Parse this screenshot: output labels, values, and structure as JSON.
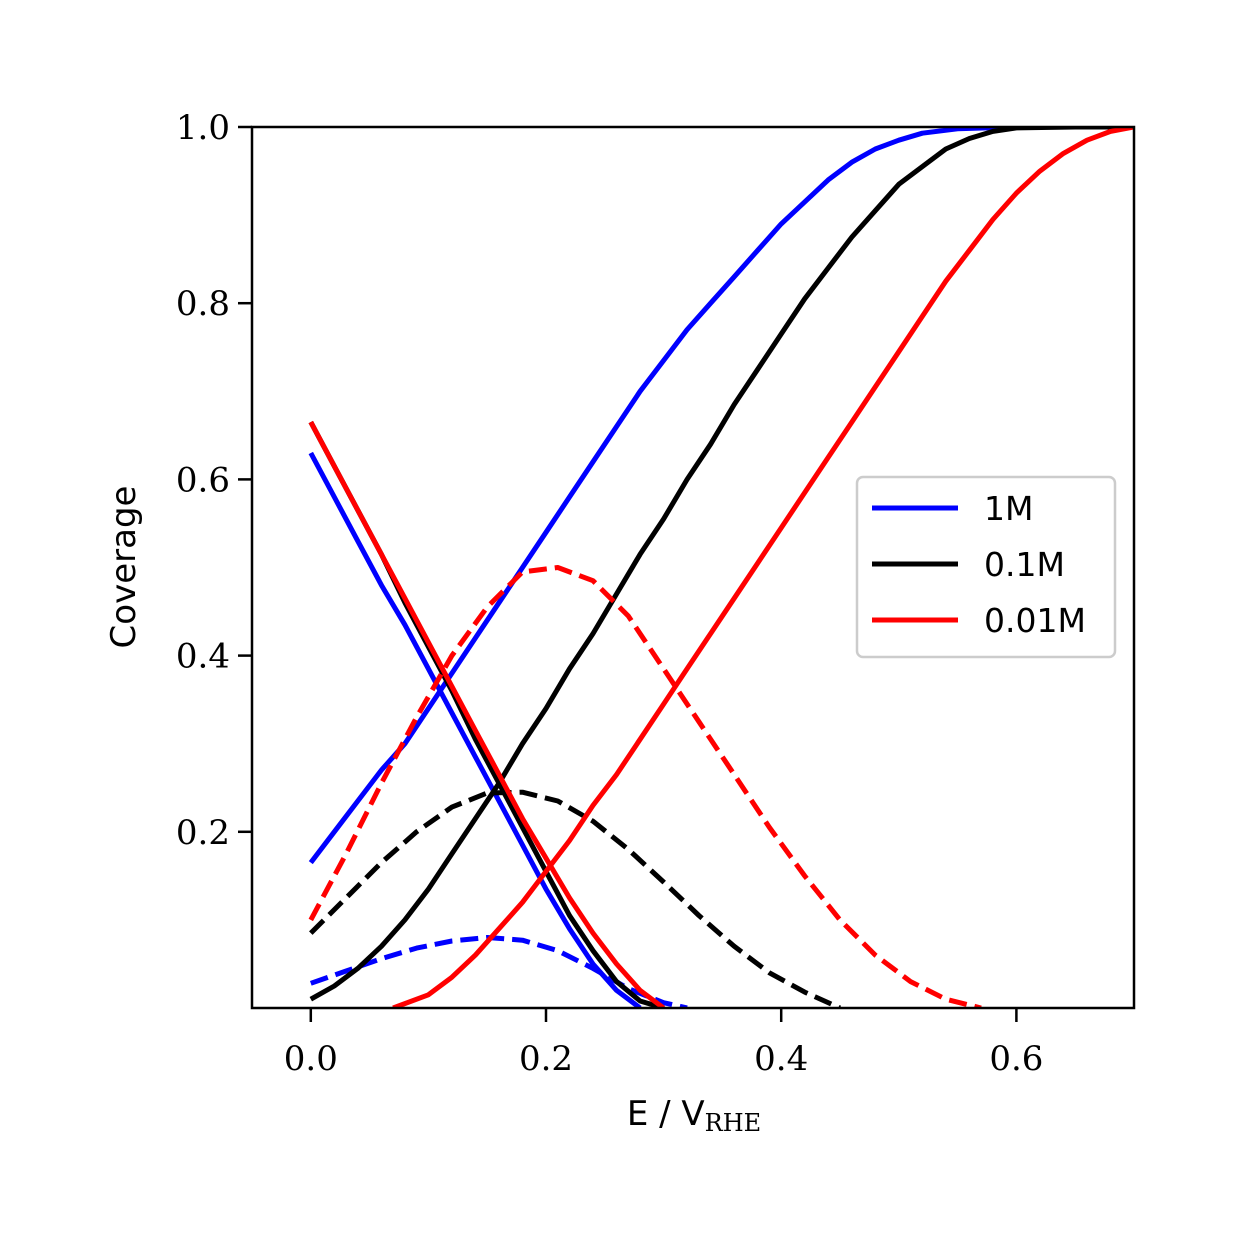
{
  "chart_data": {
    "type": "line",
    "xlabel": "E / V",
    "xlabel_subscript": "RHE",
    "ylabel": "Coverage",
    "xlim": [
      -0.05,
      0.7
    ],
    "ylim": [
      0.0,
      1.0
    ],
    "xticks": [
      0.0,
      0.2,
      0.4,
      0.6
    ],
    "xtick_labels": [
      "0.0",
      "0.2",
      "0.4",
      "0.6"
    ],
    "yticks": [
      0.2,
      0.4,
      0.6,
      0.8,
      1.0
    ],
    "ytick_labels": [
      "0.2",
      "0.4",
      "0.6",
      "0.8",
      "1.0"
    ],
    "legend": {
      "position": "center-right",
      "entries": [
        {
          "label": "1M",
          "color": "#0000ff"
        },
        {
          "label": "0.1M",
          "color": "#000000"
        },
        {
          "label": "0.01M",
          "color": "#ff0000"
        }
      ]
    },
    "series": [
      {
        "group": "1M",
        "color": "#0000ff",
        "style": "solid",
        "x": [
          0.0,
          0.02,
          0.04,
          0.06,
          0.08,
          0.1,
          0.12,
          0.14,
          0.16,
          0.18,
          0.2,
          0.22,
          0.24,
          0.26,
          0.28,
          0.3,
          0.32,
          0.34,
          0.36,
          0.38,
          0.4,
          0.42,
          0.44,
          0.46,
          0.48,
          0.5,
          0.52,
          0.55,
          0.6,
          0.65,
          0.7
        ],
        "y": [
          0.165,
          0.2,
          0.235,
          0.27,
          0.3,
          0.34,
          0.38,
          0.42,
          0.46,
          0.5,
          0.54,
          0.58,
          0.62,
          0.66,
          0.7,
          0.735,
          0.77,
          0.8,
          0.83,
          0.86,
          0.89,
          0.915,
          0.94,
          0.96,
          0.975,
          0.985,
          0.993,
          0.998,
          1.0,
          1.0,
          1.0
        ]
      },
      {
        "group": "1M",
        "color": "#0000ff",
        "style": "solid",
        "x": [
          0.0,
          0.02,
          0.04,
          0.06,
          0.08,
          0.1,
          0.12,
          0.14,
          0.16,
          0.18,
          0.2,
          0.22,
          0.24,
          0.26,
          0.28
        ],
        "y": [
          0.63,
          0.58,
          0.53,
          0.48,
          0.435,
          0.385,
          0.335,
          0.285,
          0.235,
          0.185,
          0.135,
          0.09,
          0.05,
          0.02,
          0.0
        ]
      },
      {
        "group": "1M",
        "color": "#0000ff",
        "style": "dashed",
        "x": [
          0.0,
          0.03,
          0.06,
          0.09,
          0.12,
          0.15,
          0.18,
          0.21,
          0.24,
          0.27,
          0.3,
          0.32
        ],
        "y": [
          0.028,
          0.042,
          0.056,
          0.068,
          0.076,
          0.08,
          0.077,
          0.065,
          0.045,
          0.022,
          0.006,
          0.0
        ]
      },
      {
        "group": "0.1M",
        "color": "#000000",
        "style": "solid",
        "x": [
          0.0,
          0.02,
          0.04,
          0.06,
          0.08,
          0.1,
          0.12,
          0.14,
          0.16,
          0.18,
          0.2,
          0.22,
          0.24,
          0.26,
          0.28,
          0.3,
          0.32,
          0.34,
          0.36,
          0.38,
          0.4,
          0.42,
          0.44,
          0.46,
          0.48,
          0.5,
          0.52,
          0.54,
          0.56,
          0.58,
          0.6,
          0.65,
          0.7
        ],
        "y": [
          0.01,
          0.025,
          0.045,
          0.07,
          0.1,
          0.135,
          0.175,
          0.215,
          0.255,
          0.3,
          0.34,
          0.385,
          0.425,
          0.47,
          0.515,
          0.555,
          0.6,
          0.64,
          0.685,
          0.725,
          0.765,
          0.805,
          0.84,
          0.875,
          0.905,
          0.935,
          0.955,
          0.975,
          0.987,
          0.995,
          0.999,
          1.0,
          1.0
        ]
      },
      {
        "group": "0.1M",
        "color": "#000000",
        "style": "solid",
        "x": [
          0.0,
          0.02,
          0.04,
          0.06,
          0.08,
          0.1,
          0.12,
          0.14,
          0.16,
          0.18,
          0.2,
          0.22,
          0.24,
          0.26,
          0.28,
          0.3
        ],
        "y": [
          0.665,
          0.615,
          0.565,
          0.515,
          0.46,
          0.41,
          0.36,
          0.305,
          0.255,
          0.205,
          0.155,
          0.105,
          0.065,
          0.03,
          0.008,
          0.0
        ]
      },
      {
        "group": "0.1M",
        "color": "#000000",
        "style": "dashed",
        "x": [
          0.0,
          0.03,
          0.06,
          0.09,
          0.12,
          0.15,
          0.18,
          0.21,
          0.24,
          0.27,
          0.3,
          0.33,
          0.36,
          0.39,
          0.42,
          0.45
        ],
        "y": [
          0.085,
          0.125,
          0.165,
          0.2,
          0.228,
          0.244,
          0.245,
          0.235,
          0.212,
          0.18,
          0.143,
          0.105,
          0.07,
          0.04,
          0.018,
          0.0
        ]
      },
      {
        "group": "0.01M",
        "color": "#ff0000",
        "style": "solid",
        "x": [
          0.07,
          0.1,
          0.12,
          0.14,
          0.16,
          0.18,
          0.2,
          0.22,
          0.24,
          0.26,
          0.28,
          0.3,
          0.32,
          0.34,
          0.36,
          0.38,
          0.4,
          0.42,
          0.44,
          0.46,
          0.48,
          0.5,
          0.52,
          0.54,
          0.56,
          0.58,
          0.6,
          0.62,
          0.64,
          0.66,
          0.68,
          0.7
        ],
        "y": [
          0.0,
          0.015,
          0.035,
          0.06,
          0.09,
          0.12,
          0.155,
          0.19,
          0.23,
          0.265,
          0.305,
          0.345,
          0.385,
          0.425,
          0.465,
          0.505,
          0.545,
          0.585,
          0.625,
          0.665,
          0.705,
          0.745,
          0.785,
          0.825,
          0.86,
          0.895,
          0.925,
          0.95,
          0.97,
          0.985,
          0.995,
          1.0
        ]
      },
      {
        "group": "0.01M",
        "color": "#ff0000",
        "style": "solid",
        "x": [
          0.0,
          0.02,
          0.04,
          0.06,
          0.08,
          0.1,
          0.12,
          0.14,
          0.16,
          0.18,
          0.2,
          0.22,
          0.24,
          0.26,
          0.28,
          0.3
        ],
        "y": [
          0.665,
          0.615,
          0.565,
          0.515,
          0.465,
          0.415,
          0.365,
          0.315,
          0.265,
          0.215,
          0.17,
          0.125,
          0.085,
          0.05,
          0.02,
          0.0
        ]
      },
      {
        "group": "0.01M",
        "color": "#ff0000",
        "style": "dashed",
        "x": [
          0.0,
          0.03,
          0.06,
          0.09,
          0.12,
          0.15,
          0.18,
          0.21,
          0.24,
          0.27,
          0.3,
          0.33,
          0.36,
          0.39,
          0.42,
          0.45,
          0.48,
          0.51,
          0.54,
          0.57
        ],
        "y": [
          0.1,
          0.175,
          0.255,
          0.33,
          0.4,
          0.455,
          0.495,
          0.5,
          0.485,
          0.445,
          0.385,
          0.325,
          0.265,
          0.205,
          0.15,
          0.1,
          0.06,
          0.03,
          0.01,
          0.0
        ]
      }
    ]
  }
}
